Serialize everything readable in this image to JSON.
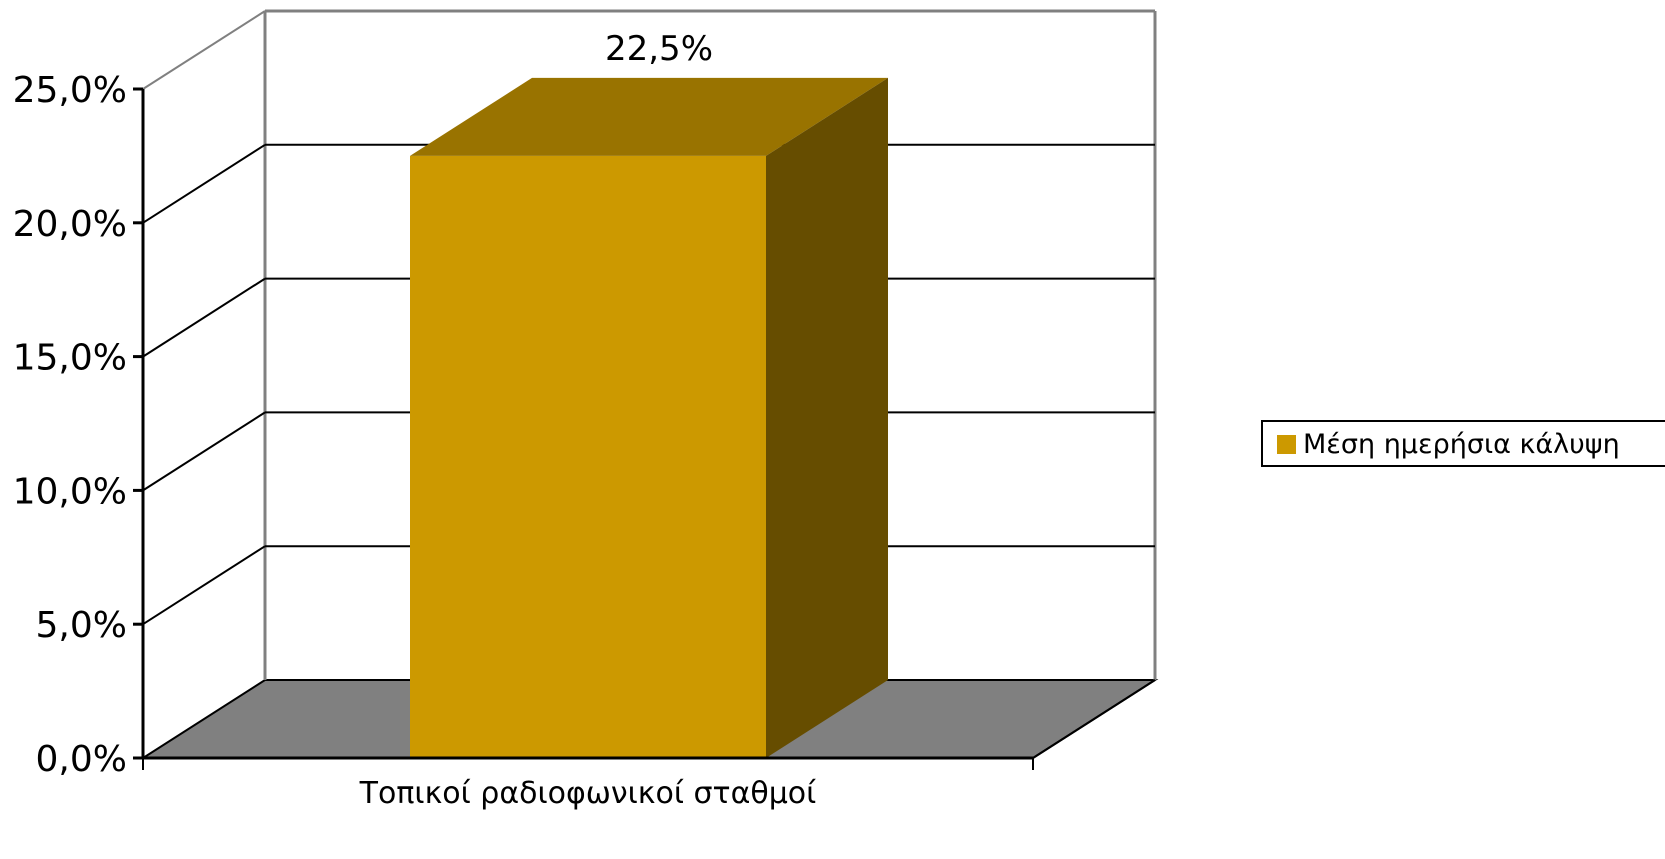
{
  "chart_data": {
    "type": "bar",
    "categories": [
      "Τοπικοί ραδιοφωνικοί σταθμοί"
    ],
    "series": [
      {
        "name": "Μέση ημερήσια κάλυψη",
        "values": [
          22.5
        ],
        "color": "#CC9900"
      }
    ],
    "data_labels": [
      "22,5%"
    ],
    "ytick_labels": [
      "0,0%",
      "5,0%",
      "10,0%",
      "15,0%",
      "20,0%",
      "25,0%"
    ],
    "yticks": [
      0,
      5,
      10,
      15,
      20,
      25
    ],
    "ylim": [
      0,
      25
    ],
    "title": "",
    "xlabel": "",
    "ylabel": "",
    "grid": true,
    "legend_position": "right",
    "three_d": true,
    "colors": {
      "bar_front": "#CC9900",
      "bar_top": "#997300",
      "bar_side": "#664D00",
      "floor": "#808080",
      "back_wall_edge": "#808080",
      "gridline": "#000000"
    }
  }
}
